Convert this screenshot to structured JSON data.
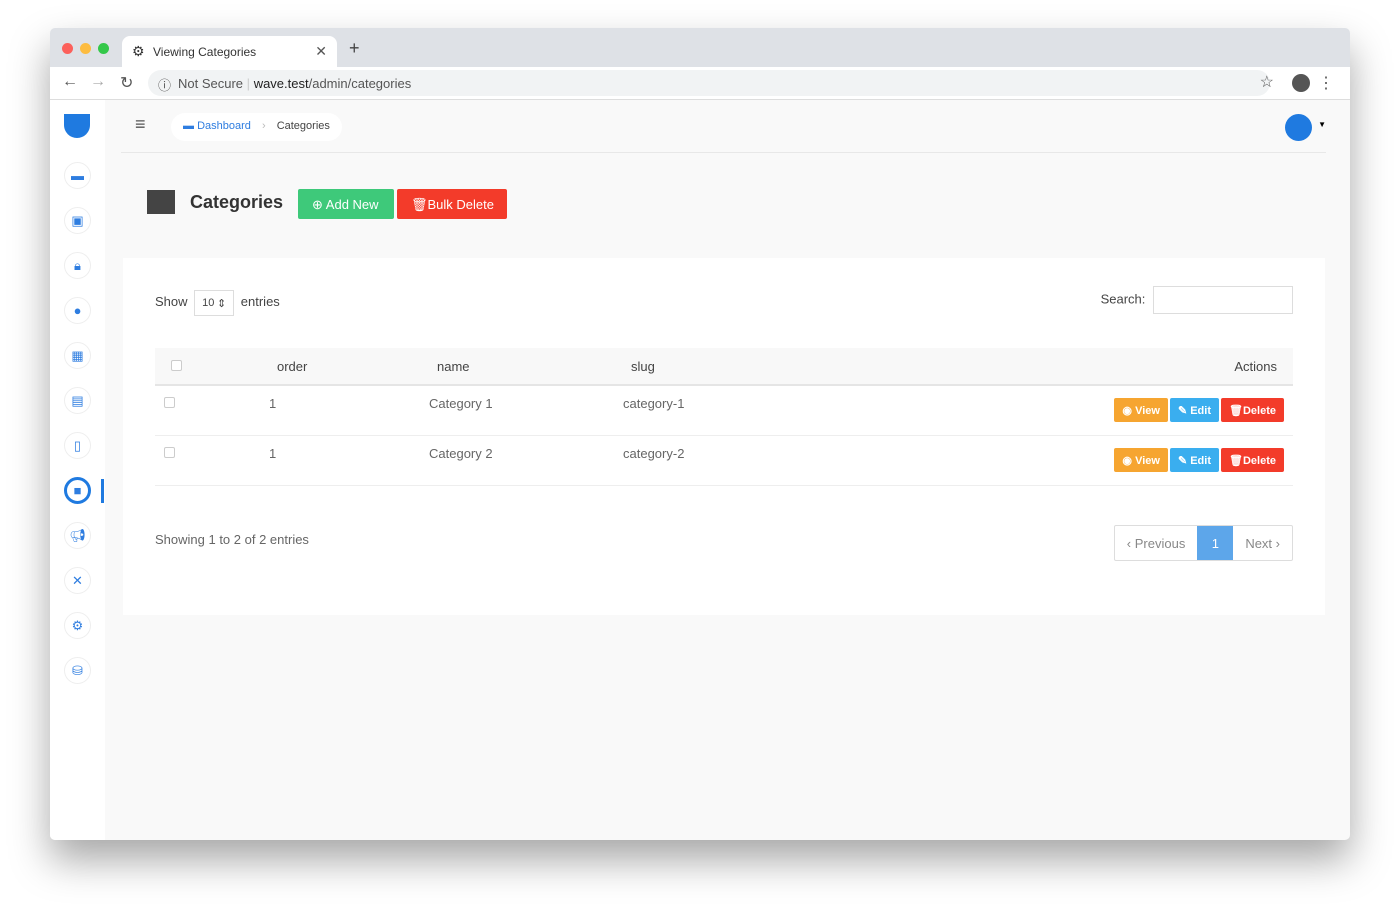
{
  "browser": {
    "tab_title": "Viewing Categories",
    "security": "Not Secure",
    "url_host": "wave.test",
    "url_path": "/admin/categories"
  },
  "breadcrumb": {
    "home": "Dashboard",
    "current": "Categories"
  },
  "page": {
    "title": "Categories",
    "add_new": "Add New",
    "bulk_delete": "Bulk Delete"
  },
  "table": {
    "show": "Show",
    "entries_value": "10",
    "entries": "entries",
    "search_label": "Search:",
    "search_value": "",
    "columns": [
      "order",
      "name",
      "slug",
      "Actions"
    ],
    "rows": [
      {
        "order": "1",
        "name": "Category 1",
        "slug": "category-1"
      },
      {
        "order": "1",
        "name": "Category 2",
        "slug": "category-2"
      }
    ],
    "actions": {
      "view": "View",
      "edit": "Edit",
      "delete": "Delete"
    },
    "info": "Showing 1 to 2 of 2 entries",
    "pagination": {
      "previous": "Previous",
      "current": "1",
      "next": "Next"
    }
  },
  "sidebar": [
    "dashboard",
    "media",
    "security",
    "users",
    "images",
    "posts",
    "pages",
    "categories",
    "announcements",
    "tools",
    "settings",
    "database"
  ],
  "colors": {
    "accent": "#2e7de0",
    "success": "#3ec97a",
    "danger": "#f33b2a",
    "warning": "#f6a530",
    "info": "#3aaeef"
  }
}
